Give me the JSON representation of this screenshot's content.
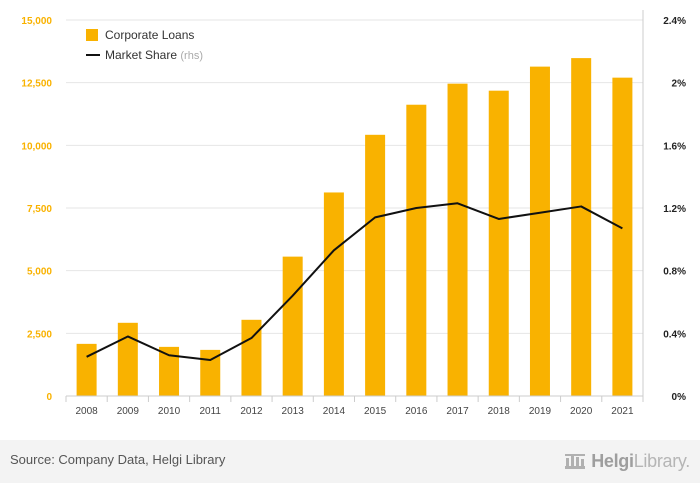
{
  "chart_data": {
    "type": "bar",
    "categories": [
      "2008",
      "2009",
      "2010",
      "2011",
      "2012",
      "2013",
      "2014",
      "2015",
      "2016",
      "2017",
      "2018",
      "2019",
      "2020",
      "2021"
    ],
    "series": [
      {
        "name": "Corporate Loans",
        "type": "bar",
        "axis": "left",
        "color": "#f9b200",
        "values": [
          2080,
          2920,
          1960,
          1840,
          3040,
          5560,
          8120,
          10420,
          11620,
          12460,
          12180,
          13140,
          13480,
          12700
        ]
      },
      {
        "name": "Market Share",
        "name_suffix": "(rhs)",
        "type": "line",
        "axis": "right",
        "color": "#111111",
        "values": [
          0.25,
          0.38,
          0.26,
          0.23,
          0.37,
          0.64,
          0.93,
          1.14,
          1.2,
          1.23,
          1.13,
          1.17,
          1.21,
          1.07
        ]
      }
    ],
    "left_axis": {
      "ticks": [
        0,
        2500,
        5000,
        7500,
        10000,
        12500,
        15000
      ],
      "tick_labels": [
        "0",
        "2,500",
        "5,000",
        "7,500",
        "10,000",
        "12,500",
        "15,000"
      ],
      "ylim": [
        0,
        15000
      ],
      "color": "#f9b200"
    },
    "right_axis": {
      "ticks": [
        0,
        0.4,
        0.8,
        1.2,
        1.6,
        2.0,
        2.4
      ],
      "tick_labels": [
        "0%",
        "0.4%",
        "0.8%",
        "1.2%",
        "1.6%",
        "2%",
        "2.4%"
      ],
      "ylim": [
        0,
        2.4
      ]
    },
    "grid": true,
    "legend_position": "top-left"
  },
  "footer": {
    "source": "Source: Company Data, Helgi Library",
    "brand_part1": "Helgi",
    "brand_part2": "Library."
  }
}
